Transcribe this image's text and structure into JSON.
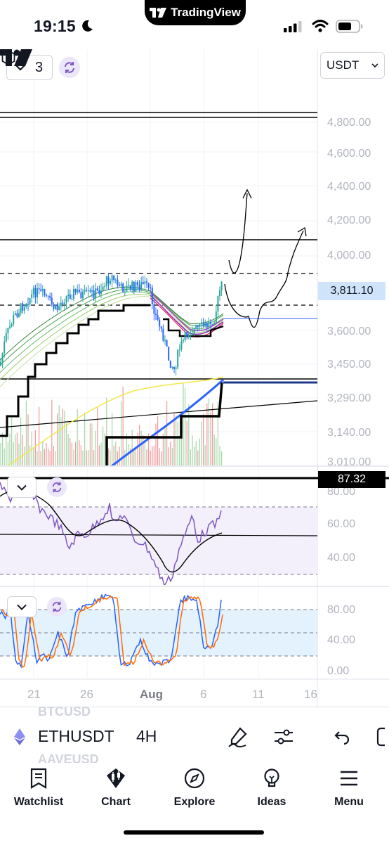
{
  "status": {
    "time": "19:15"
  },
  "brand": {
    "name": "TradingView"
  },
  "toolbar": {
    "interval_count": "3",
    "currency": "USDT"
  },
  "price_axis": {
    "labels": [
      "4,800.00",
      "4,600.00",
      "4,400.00",
      "4,200.00",
      "4,000.00",
      "3,600.00",
      "3,450.00",
      "3,290.00",
      "3,140.00",
      "3,010.00"
    ],
    "last_price": "3,811.10"
  },
  "rsi_pane": {
    "labels": [
      "80.00",
      "60.00",
      "40.00"
    ],
    "value_tag": "87.32"
  },
  "stoch_pane": {
    "labels": [
      "80.00",
      "40.00",
      "0.00"
    ]
  },
  "time_axis": {
    "labels": [
      "21",
      "26",
      "Aug",
      "6",
      "11",
      "16"
    ]
  },
  "symbol_bar": {
    "symbol": "ETHUSDT",
    "timeframe": "4H",
    "ghost_above": "BTCUSD",
    "ghost_below": "AAVEUSD"
  },
  "tabs": [
    "Watchlist",
    "Chart",
    "Explore",
    "Ideas",
    "Menu"
  ],
  "colors": {
    "accent": "#2962ff",
    "up": "#26a69a",
    "down": "#ef5350",
    "rsi": "#7e57c2",
    "last_price_bg": "#cfe3fb"
  },
  "chart_data": {
    "type": "line",
    "symbol": "ETHUSDT",
    "timeframe": "4H",
    "x": [
      "Jul 21",
      "Jul 26",
      "Aug 1",
      "Aug 6",
      "Aug 11",
      "Aug 16"
    ],
    "price_axis_ticks": [
      4800,
      4600,
      4400,
      4200,
      4000,
      3600,
      3450,
      3290,
      3140,
      3010
    ],
    "last_price": 3811.1,
    "horizontal_levels": [
      4850,
      4830,
      4090,
      3930,
      3790,
      3400
    ],
    "rsi": {
      "value": 87.32,
      "ticks": [
        80,
        60,
        40
      ]
    },
    "stochastic": {
      "ticks": [
        80,
        40,
        0
      ]
    },
    "grid": true,
    "legend": "none"
  }
}
